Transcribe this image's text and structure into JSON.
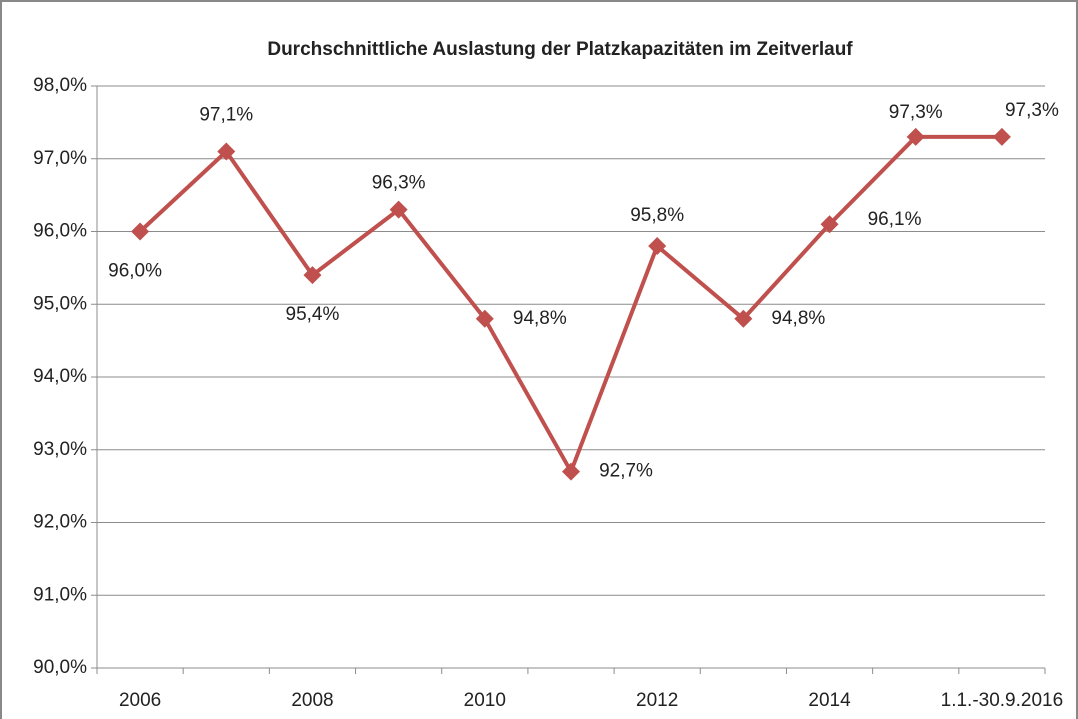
{
  "chart_data": {
    "type": "line",
    "title": "Durchschnittliche Auslastung der Platzkapazitäten im Zeitverlauf",
    "categories": [
      "2006",
      null,
      "2008",
      null,
      "2010",
      null,
      "2012",
      null,
      "2014",
      null,
      "1.1.-30.9.2016"
    ],
    "series": [
      {
        "name": "Auslastung",
        "color": "#c0504d",
        "values": [
          96.0,
          97.1,
          95.4,
          96.3,
          94.8,
          92.7,
          95.8,
          94.8,
          96.1,
          97.3,
          97.3
        ],
        "value_labels": [
          "96,0%",
          "97,1%",
          "95,4%",
          "96,3%",
          "94,8%",
          "92,7%",
          "95,8%",
          "94,8%",
          "96,1%",
          "97,3%",
          "97,3%"
        ]
      }
    ],
    "ylim": [
      90,
      98
    ],
    "yticks": [
      {
        "value": 90,
        "label": "90,0%"
      },
      {
        "value": 91,
        "label": "91,0%"
      },
      {
        "value": 92,
        "label": "92,0%"
      },
      {
        "value": 93,
        "label": "93,0%"
      },
      {
        "value": 94,
        "label": "94,0%"
      },
      {
        "value": 95,
        "label": "95,0%"
      },
      {
        "value": 96,
        "label": "96,0%"
      },
      {
        "value": 97,
        "label": "97,0%"
      },
      {
        "value": 98,
        "label": "98,0%"
      }
    ],
    "grid": true
  }
}
